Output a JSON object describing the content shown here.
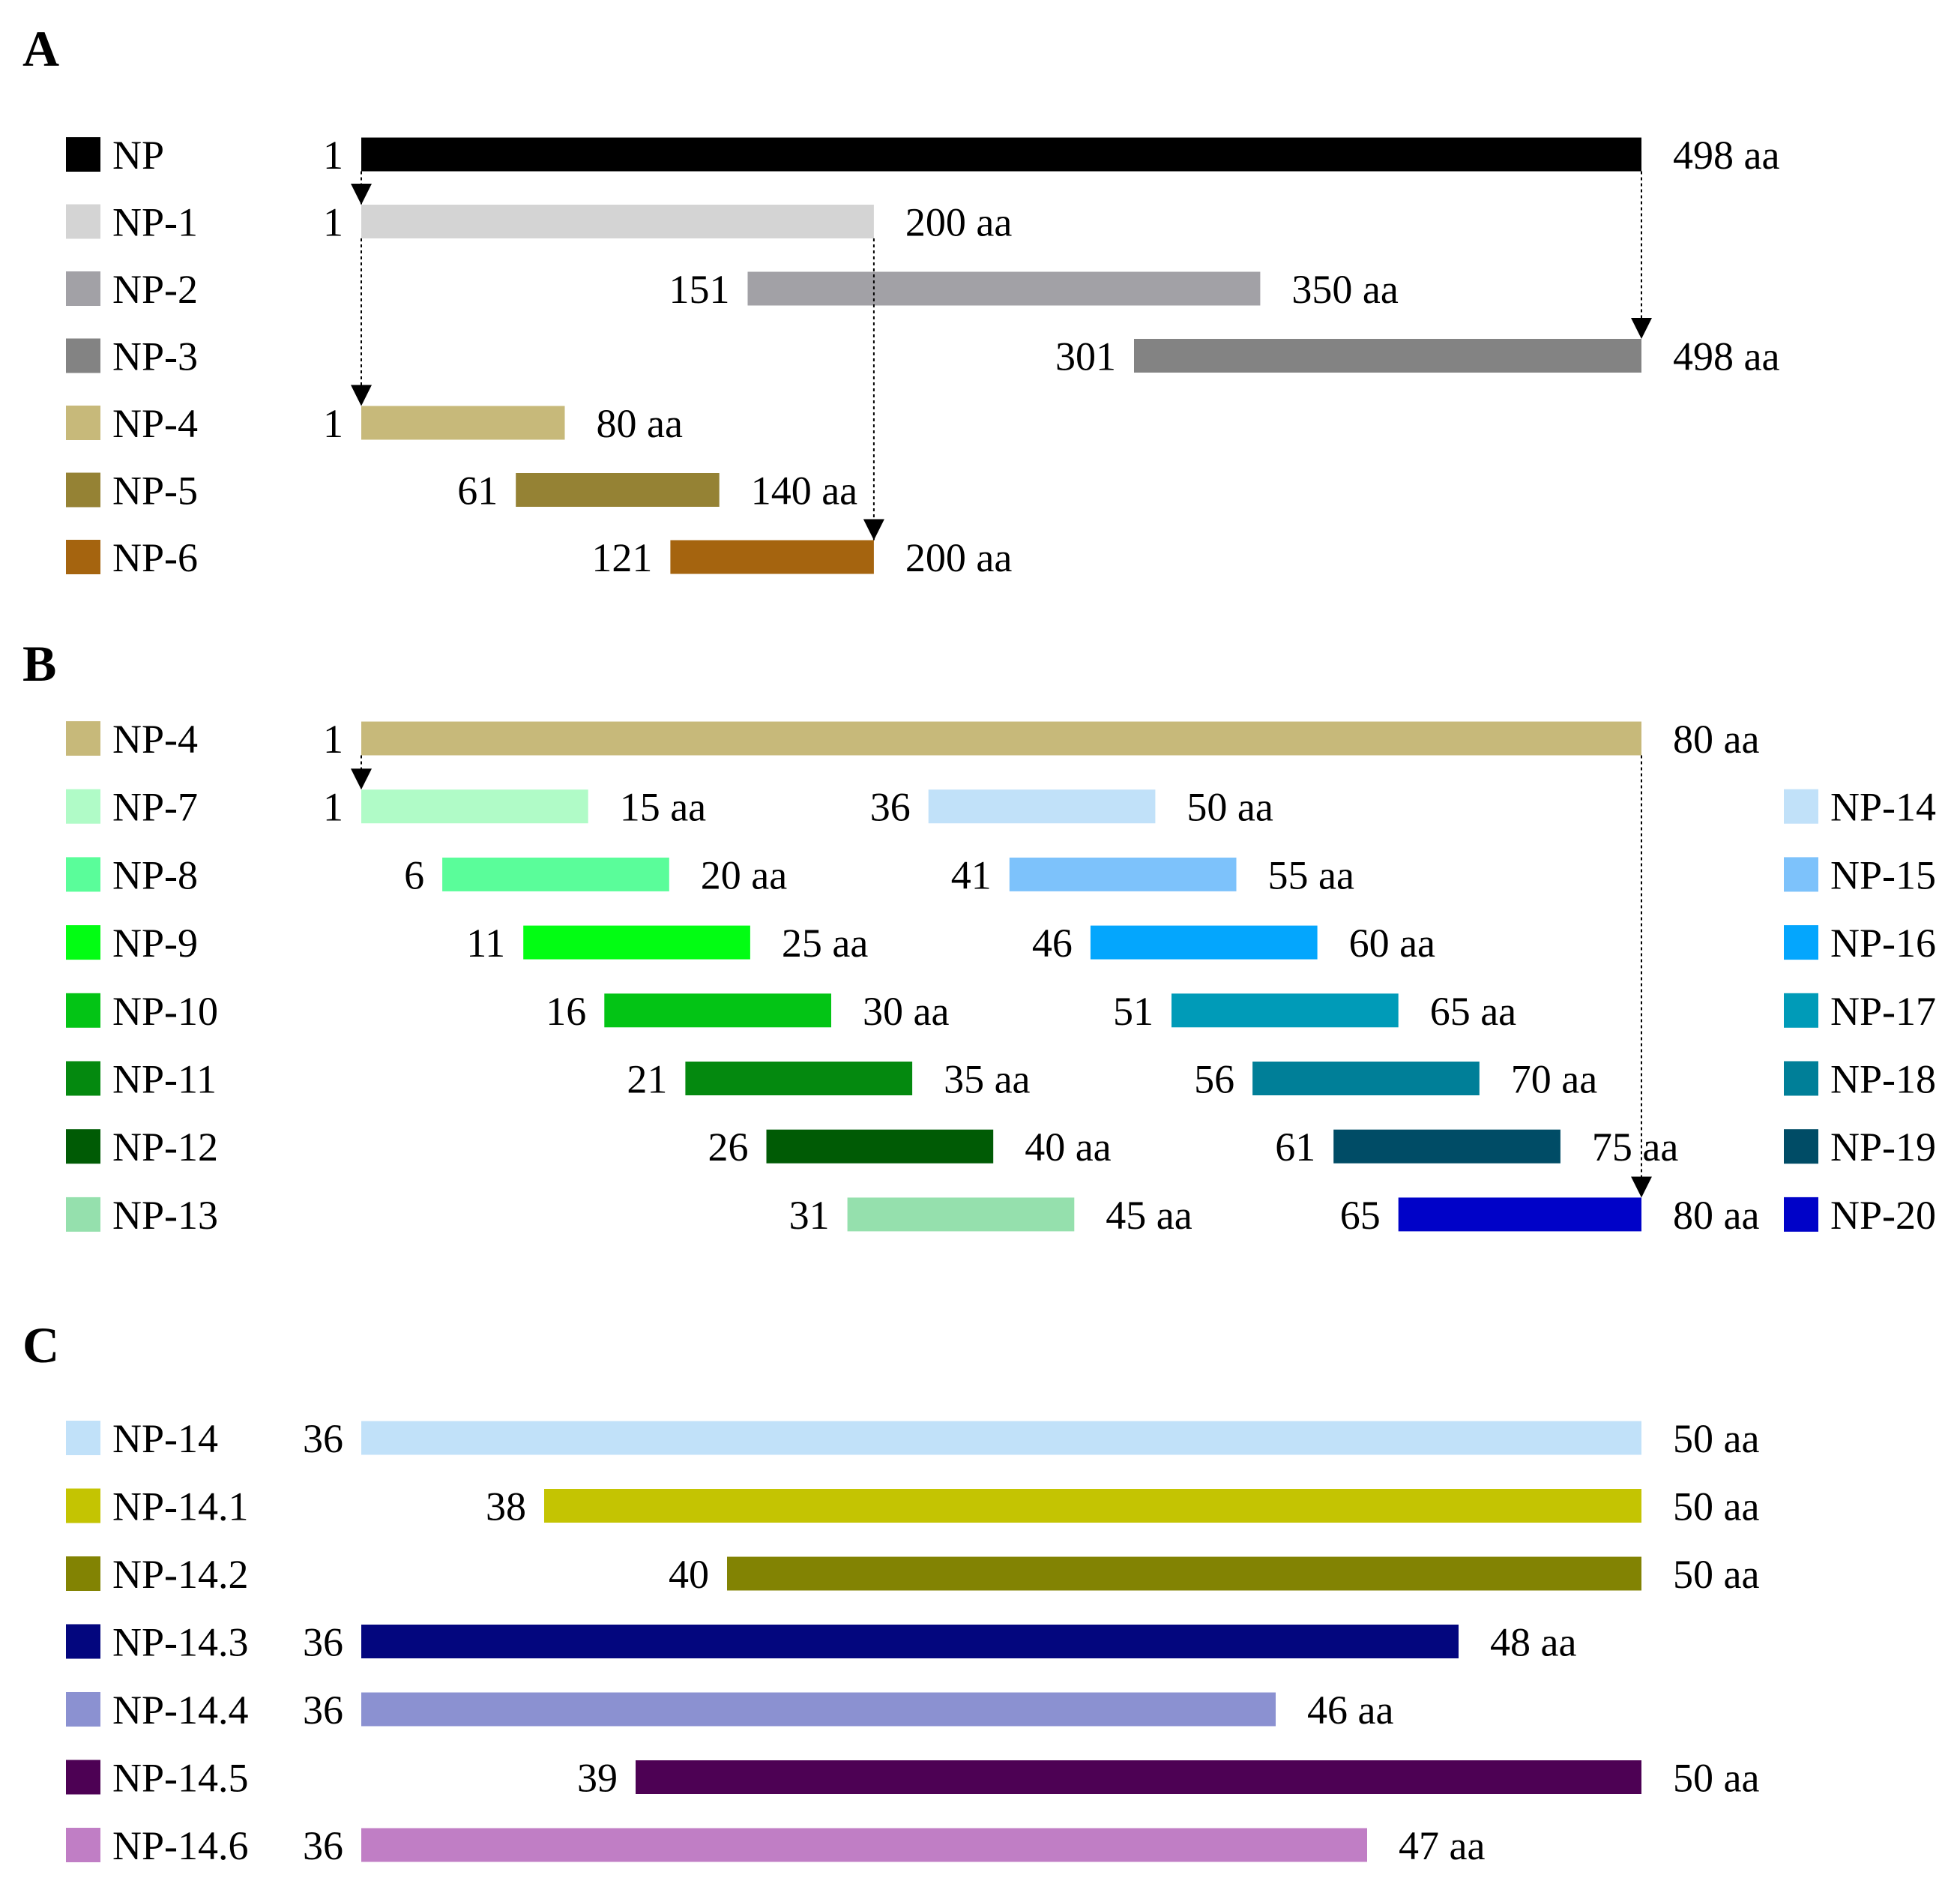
{
  "panels": [
    {
      "label": "A",
      "ref_start": 1,
      "ref_end": 498,
      "rows": [
        {
          "name": "NP",
          "start_label": "1",
          "end_label": "498 aa",
          "start": 1,
          "end": 498,
          "color": "#000000"
        },
        {
          "name": "NP-1",
          "start_label": "1",
          "end_label": "200 aa",
          "start": 1,
          "end": 200,
          "color": "#d4d4d4"
        },
        {
          "name": "NP-2",
          "start_label": "151",
          "end_label": "350 aa",
          "start": 151,
          "end": 350,
          "color": "#a2a1a6"
        },
        {
          "name": "NP-3",
          "start_label": "301",
          "end_label": "498 aa",
          "start": 301,
          "end": 498,
          "color": "#838383"
        },
        {
          "name": "NP-4",
          "start_label": "1",
          "end_label": "80 aa",
          "start": 1,
          "end": 80,
          "color": "#c7b97a"
        },
        {
          "name": "NP-5",
          "start_label": "61",
          "end_label": "140 aa",
          "start": 61,
          "end": 140,
          "color": "#958234"
        },
        {
          "name": "NP-6",
          "start_label": "121",
          "end_label": "200 aa",
          "start": 121,
          "end": 200,
          "color": "#a5640f"
        }
      ],
      "arrows": [
        {
          "residue": 1,
          "from_row": 0,
          "to_row": 1
        },
        {
          "residue": 1,
          "from_row": 1,
          "to_row": 4
        },
        {
          "residue": 200,
          "from_row": 1,
          "to_row": 6
        },
        {
          "residue": 498,
          "from_row": 0,
          "to_row": 3
        }
      ]
    },
    {
      "label": "B",
      "ref_start": 1,
      "ref_end": 80,
      "rows": [
        {
          "name": "NP-4",
          "start_label": "1",
          "end_label": "80 aa",
          "start": 1,
          "end": 80,
          "color": "#c7b97a"
        },
        {
          "name": "NP-7",
          "start_label": "1",
          "end_label": "15 aa",
          "start": 1,
          "end": 15,
          "color": "#b0fbc7"
        },
        {
          "name": "NP-8",
          "start_label": "6",
          "end_label": "20 aa",
          "start": 6,
          "end": 20,
          "color": "#5afd9a"
        },
        {
          "name": "NP-9",
          "start_label": "11",
          "end_label": "25 aa",
          "start": 11,
          "end": 25,
          "color": "#02fd13"
        },
        {
          "name": "NP-10",
          "start_label": "16",
          "end_label": "30 aa",
          "start": 16,
          "end": 30,
          "color": "#03c415"
        },
        {
          "name": "NP-11",
          "start_label": "21",
          "end_label": "35 aa",
          "start": 21,
          "end": 35,
          "color": "#04890f"
        },
        {
          "name": "NP-12",
          "start_label": "26",
          "end_label": "40 aa",
          "start": 26,
          "end": 40,
          "color": "#005b05"
        },
        {
          "name": "NP-13",
          "start_label": "31",
          "end_label": "45 aa",
          "start": 31,
          "end": 45,
          "color": "#95e0ad"
        }
      ],
      "right_rows": [
        {
          "name": "NP-14",
          "start_label": "36",
          "end_label": "50 aa",
          "start": 36,
          "end": 50,
          "color": "#c1e1f9"
        },
        {
          "name": "NP-15",
          "start_label": "41",
          "end_label": "55 aa",
          "start": 41,
          "end": 55,
          "color": "#7dc2fb"
        },
        {
          "name": "NP-16",
          "start_label": "46",
          "end_label": "60 aa",
          "start": 46,
          "end": 60,
          "color": "#04a6fd"
        },
        {
          "name": "NP-17",
          "start_label": "51",
          "end_label": "65 aa",
          "start": 51,
          "end": 65,
          "color": "#009bb8"
        },
        {
          "name": "NP-18",
          "start_label": "56",
          "end_label": "70 aa",
          "start": 56,
          "end": 70,
          "color": "#007f98"
        },
        {
          "name": "NP-19",
          "start_label": "61",
          "end_label": "75 aa",
          "start": 61,
          "end": 75,
          "color": "#004c66"
        },
        {
          "name": "NP-20",
          "start_label": "65",
          "end_label": "80 aa",
          "start": 65,
          "end": 80,
          "color": "#0002c8"
        }
      ],
      "arrows": [
        {
          "residue": 1,
          "from_row": 0,
          "to_row": 1
        },
        {
          "residue": 80,
          "from_row": 0,
          "to_row": 7
        }
      ]
    },
    {
      "label": "C",
      "ref_start": 36,
      "ref_end": 50,
      "rows": [
        {
          "name": "NP-14",
          "start_label": "36",
          "end_label": "50 aa",
          "start": 36,
          "end": 50,
          "color": "#c1e1f9"
        },
        {
          "name": "NP-14.1",
          "start_label": "38",
          "end_label": "50 aa",
          "start": 38,
          "end": 50,
          "color": "#c4c402"
        },
        {
          "name": "NP-14.2",
          "start_label": "40",
          "end_label": "50 aa",
          "start": 40,
          "end": 50,
          "color": "#828303"
        },
        {
          "name": "NP-14.3",
          "start_label": "36",
          "end_label": "48 aa",
          "start": 36,
          "end": 48,
          "color": "#03067e"
        },
        {
          "name": "NP-14.4",
          "start_label": "36",
          "end_label": "46 aa",
          "start": 36,
          "end": 46,
          "color": "#8b91d1"
        },
        {
          "name": "NP-14.5",
          "start_label": "39",
          "end_label": "50 aa",
          "start": 39,
          "end": 50,
          "color": "#4d0154"
        },
        {
          "name": "NP-14.6",
          "start_label": "36",
          "end_label": "47 aa",
          "start": 36,
          "end": 47,
          "color": "#c07ec5"
        }
      ]
    }
  ]
}
